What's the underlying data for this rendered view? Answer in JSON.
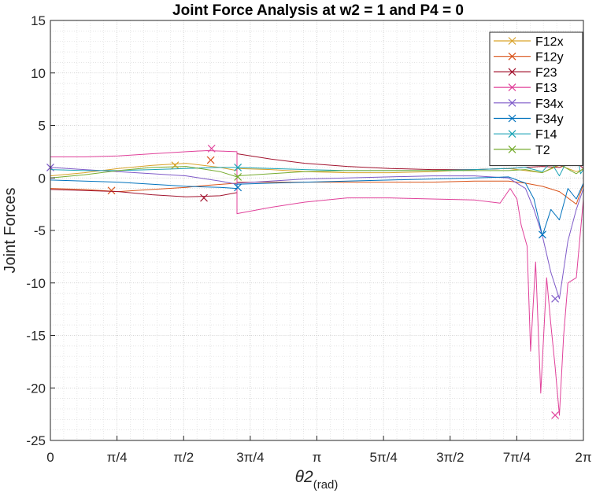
{
  "chart_data": {
    "type": "line",
    "title": "Joint Force Analysis at w2 = 1 and P4 = 0",
    "ylabel": "Joint Forces",
    "xlabel": "θ2",
    "xlabel_sub": "(rad)",
    "xlim": [
      0,
      6.2832
    ],
    "ylim": [
      -25,
      15
    ],
    "grid": true,
    "minor_grid": true,
    "legend_position": "top-right",
    "xticks": [
      {
        "value": 0,
        "label": "0"
      },
      {
        "value": 0.7854,
        "label": "π/4"
      },
      {
        "value": 1.5708,
        "label": "π/2"
      },
      {
        "value": 2.3562,
        "label": "3π/4"
      },
      {
        "value": 3.1416,
        "label": "π"
      },
      {
        "value": 3.927,
        "label": "5π/4"
      },
      {
        "value": 4.7124,
        "label": "3π/2"
      },
      {
        "value": 5.4978,
        "label": "7π/4"
      },
      {
        "value": 6.2832,
        "label": "2π"
      }
    ],
    "yticks": [
      15,
      10,
      5,
      0,
      -5,
      -10,
      -15,
      -20,
      -25
    ],
    "series": [
      {
        "name": "F12x",
        "color": "#D9A32A",
        "x": [
          0,
          0.4,
          0.8,
          1.2,
          1.6,
          2.0,
          2.2,
          2.2,
          2.6,
          3.0,
          3.5,
          4.0,
          4.5,
          5.0,
          5.4,
          5.6,
          5.8,
          6.0,
          6.2,
          6.283
        ],
        "y": [
          0.2,
          0.5,
          0.9,
          1.2,
          1.4,
          1.0,
          0.7,
          0.9,
          0.8,
          0.6,
          0.5,
          0.5,
          0.6,
          0.8,
          0.9,
          0.7,
          0.5,
          1.2,
          0.6,
          0.8
        ],
        "markers": [
          {
            "x": 1.47,
            "y": 1.2
          }
        ]
      },
      {
        "name": "F12y",
        "color": "#D95319",
        "x": [
          0,
          0.4,
          0.8,
          1.2,
          1.6,
          1.85,
          2.2,
          2.2,
          2.6,
          3.0,
          3.5,
          4.0,
          4.5,
          5.0,
          5.4,
          5.6,
          5.8,
          6.0,
          6.2,
          6.283
        ],
        "y": [
          -1.0,
          -1.1,
          -1.3,
          -1.1,
          -0.9,
          -0.7,
          -0.5,
          -0.4,
          -0.4,
          -0.4,
          -0.4,
          -0.4,
          -0.4,
          -0.3,
          -0.3,
          -0.5,
          -0.8,
          -1.3,
          -2.5,
          -0.6
        ],
        "markers": [
          {
            "x": 0.72,
            "y": -1.2
          },
          {
            "x": 1.89,
            "y": 1.7
          }
        ]
      },
      {
        "name": "F23",
        "color": "#A2142F",
        "x": [
          0,
          0.4,
          0.8,
          1.2,
          1.6,
          2.0,
          2.2,
          2.2,
          2.6,
          3.0,
          3.5,
          4.0,
          4.5,
          5.0,
          5.4,
          5.6,
          5.8,
          6.0,
          6.2,
          6.283
        ],
        "y": [
          -1.1,
          -1.2,
          -1.3,
          -1.6,
          -1.8,
          -1.7,
          -1.4,
          2.3,
          1.8,
          1.4,
          1.1,
          0.9,
          0.8,
          0.8,
          0.9,
          1.0,
          1.1,
          1.0,
          1.5,
          0.9
        ],
        "markers": [
          {
            "x": 1.81,
            "y": -1.9
          }
        ]
      },
      {
        "name": "F13",
        "color": "#E0419A",
        "x": [
          0,
          0.4,
          0.8,
          1.2,
          1.6,
          1.85,
          2.2,
          2.2,
          2.6,
          3.0,
          3.5,
          4.0,
          4.5,
          5.0,
          5.3,
          5.42,
          5.5,
          5.55,
          5.62,
          5.66,
          5.72,
          5.78,
          5.85,
          5.9,
          5.95,
          6.0,
          6.05,
          6.1,
          6.2,
          6.283
        ],
        "y": [
          2.0,
          2.0,
          2.1,
          2.3,
          2.5,
          2.6,
          2.5,
          -3.4,
          -2.8,
          -2.3,
          -1.9,
          -1.9,
          -2.0,
          -2.1,
          -2.4,
          -1.0,
          -2.0,
          -4.5,
          -6.5,
          -16.5,
          -8.0,
          -20.5,
          -9.5,
          -14.0,
          -18.0,
          -22.6,
          -15.0,
          -10.0,
          -9.5,
          -2.0
        ],
        "markers": [
          {
            "x": 1.9,
            "y": 2.8
          },
          {
            "x": 5.95,
            "y": -22.6
          }
        ]
      },
      {
        "name": "F34x",
        "color": "#7E5AC8",
        "x": [
          0,
          0.4,
          0.8,
          1.2,
          1.6,
          2.0,
          2.2,
          2.2,
          2.6,
          3.0,
          3.5,
          4.0,
          4.5,
          5.0,
          5.4,
          5.6,
          5.7,
          5.8,
          5.9,
          6.0,
          6.1,
          6.2,
          6.283
        ],
        "y": [
          1.0,
          0.8,
          0.6,
          0.4,
          0.2,
          -0.3,
          -0.6,
          -0.5,
          -0.3,
          -0.1,
          0.0,
          0.1,
          0.2,
          0.2,
          0.0,
          -1.0,
          -3.0,
          -5.5,
          -9.0,
          -11.5,
          -6.0,
          -3.0,
          -1.0
        ],
        "markers": [
          {
            "x": 0.0,
            "y": 1.0
          },
          {
            "x": 5.95,
            "y": -11.5
          }
        ]
      },
      {
        "name": "F34y",
        "color": "#0072BD",
        "x": [
          0,
          0.4,
          0.8,
          1.2,
          1.6,
          2.0,
          2.2,
          2.2,
          2.6,
          3.0,
          3.5,
          4.0,
          4.5,
          5.0,
          5.4,
          5.6,
          5.7,
          5.8,
          5.9,
          6.0,
          6.1,
          6.2,
          6.283
        ],
        "y": [
          -0.2,
          -0.3,
          -0.4,
          -0.6,
          -0.8,
          -0.9,
          -1.0,
          -0.6,
          -0.5,
          -0.4,
          -0.3,
          -0.2,
          -0.1,
          0.0,
          0.1,
          -0.5,
          -2.0,
          -5.5,
          -3.0,
          -4.0,
          -1.0,
          -2.0,
          -0.5
        ],
        "markers": [
          {
            "x": 2.21,
            "y": -0.9
          },
          {
            "x": 5.8,
            "y": -5.4
          }
        ]
      },
      {
        "name": "F14",
        "color": "#1BA3B5",
        "x": [
          0,
          0.4,
          0.8,
          1.2,
          1.6,
          2.0,
          2.2,
          2.6,
          3.0,
          3.5,
          4.0,
          4.5,
          5.0,
          5.4,
          5.6,
          5.8,
          5.9,
          6.0,
          6.1,
          6.2,
          6.25,
          6.283
        ],
        "y": [
          0.8,
          0.7,
          0.7,
          0.8,
          0.9,
          1.0,
          1.0,
          0.9,
          0.8,
          0.7,
          0.7,
          0.7,
          0.8,
          0.9,
          1.0,
          0.6,
          1.5,
          0.2,
          1.8,
          2.7,
          0.4,
          0.8
        ],
        "markers": [
          {
            "x": 2.21,
            "y": 1.0
          }
        ]
      },
      {
        "name": "T2",
        "color": "#77AC30",
        "x": [
          0,
          0.4,
          0.8,
          1.2,
          1.6,
          2.0,
          2.2,
          2.2,
          2.6,
          3.0,
          3.5,
          4.0,
          4.5,
          5.0,
          5.4,
          5.6,
          5.8,
          6.0,
          6.2,
          6.283
        ],
        "y": [
          0.0,
          0.3,
          0.7,
          1.0,
          1.1,
          0.6,
          0.1,
          0.2,
          0.4,
          0.6,
          0.7,
          0.7,
          0.7,
          0.7,
          0.7,
          0.8,
          0.5,
          1.3,
          0.4,
          0.9
        ],
        "markers": [
          {
            "x": 2.21,
            "y": 0.1
          }
        ]
      }
    ]
  }
}
